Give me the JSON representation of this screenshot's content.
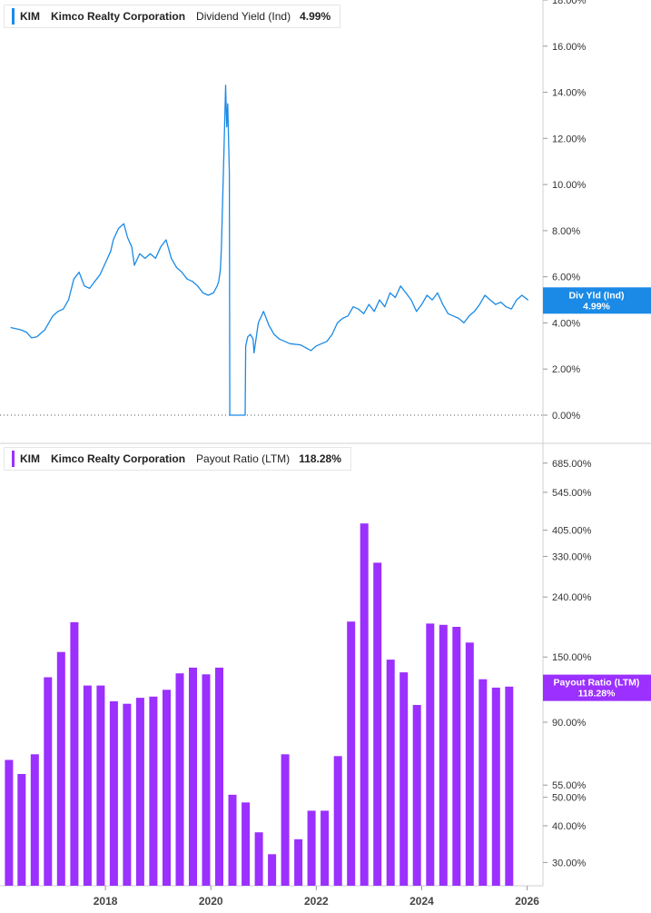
{
  "colors": {
    "yield": "#1a8ae6",
    "payout": "#9b30ff",
    "axis": "#d0d0d0"
  },
  "chart_data": [
    {
      "type": "line",
      "ticker": "KIM",
      "company": "Kimco Realty Corporation",
      "metric": "Dividend Yield (Ind)",
      "current_value": "4.99%",
      "badge_label": "Div Yld (Ind)",
      "badge_value": "4.99%",
      "y_scale": "linear",
      "ylim": [
        0,
        18
      ],
      "y_ticks": [
        0,
        2,
        4,
        6,
        8,
        10,
        12,
        14,
        16,
        18
      ],
      "y_tick_labels": [
        "0.00%",
        "2.00%",
        "4.00%",
        "6.00%",
        "8.00%",
        "10.00%",
        "12.00%",
        "14.00%",
        "16.00%",
        "18.00%"
      ],
      "baseline_dotted": 0,
      "x": [
        2016.2,
        2016.4,
        2016.5,
        2016.6,
        2016.7,
        2016.85,
        2017.0,
        2017.1,
        2017.2,
        2017.3,
        2017.4,
        2017.5,
        2017.6,
        2017.7,
        2017.8,
        2017.9,
        2018.0,
        2018.1,
        2018.15,
        2018.25,
        2018.35,
        2018.42,
        2018.5,
        2018.55,
        2018.65,
        2018.75,
        2018.85,
        2018.95,
        2019.05,
        2019.15,
        2019.25,
        2019.35,
        2019.45,
        2019.55,
        2019.65,
        2019.75,
        2019.85,
        2019.95,
        2020.05,
        2020.12,
        2020.15,
        2020.18,
        2020.2,
        2020.22,
        2020.25,
        2020.28,
        2020.3,
        2020.32,
        2020.35,
        2020.36,
        2020.4,
        2020.5,
        2020.6,
        2020.65,
        2020.66,
        2020.7,
        2020.75,
        2020.8,
        2020.82,
        2020.9,
        2021.0,
        2021.1,
        2021.2,
        2021.3,
        2021.5,
        2021.7,
        2021.9,
        2022.0,
        2022.2,
        2022.3,
        2022.4,
        2022.5,
        2022.6,
        2022.7,
        2022.8,
        2022.9,
        2023.0,
        2023.1,
        2023.2,
        2023.3,
        2023.4,
        2023.5,
        2023.6,
        2023.7,
        2023.8,
        2023.9,
        2024.0,
        2024.1,
        2024.2,
        2024.3,
        2024.4,
        2024.5,
        2024.6,
        2024.7,
        2024.8,
        2024.9,
        2025.0,
        2025.1,
        2025.2,
        2025.3,
        2025.4,
        2025.5,
        2025.6,
        2025.7,
        2025.8,
        2025.9,
        2026.02
      ],
      "values": [
        3.8,
        3.7,
        3.6,
        3.35,
        3.4,
        3.7,
        4.3,
        4.5,
        4.6,
        5.0,
        5.9,
        6.2,
        5.6,
        5.5,
        5.8,
        6.1,
        6.6,
        7.1,
        7.6,
        8.1,
        8.3,
        7.7,
        7.3,
        6.5,
        7.0,
        6.8,
        7.0,
        6.8,
        7.3,
        7.6,
        6.8,
        6.4,
        6.2,
        5.9,
        5.8,
        5.6,
        5.3,
        5.2,
        5.3,
        5.6,
        5.8,
        6.3,
        7.2,
        9.0,
        11.5,
        14.3,
        12.5,
        13.5,
        10.5,
        0.0,
        0.0,
        0.0,
        0.0,
        0.0,
        3.0,
        3.4,
        3.5,
        3.3,
        2.7,
        4.0,
        4.5,
        3.9,
        3.5,
        3.3,
        3.1,
        3.05,
        2.8,
        3.0,
        3.2,
        3.5,
        4.0,
        4.2,
        4.3,
        4.7,
        4.6,
        4.4,
        4.8,
        4.5,
        5.0,
        4.7,
        5.3,
        5.1,
        5.6,
        5.3,
        5.0,
        4.5,
        4.8,
        5.2,
        5.0,
        5.3,
        4.8,
        4.4,
        4.3,
        4.2,
        4.0,
        4.3,
        4.5,
        4.8,
        5.2,
        5.0,
        4.8,
        4.9,
        4.7,
        4.6,
        5.0,
        5.2,
        4.99
      ]
    },
    {
      "type": "bar",
      "ticker": "KIM",
      "company": "Kimco Realty Corporation",
      "metric": "Payout Ratio (LTM)",
      "current_value": "118.28%",
      "badge_label": "Payout Ratio (LTM)",
      "badge_value": "118.28%",
      "y_scale": "log",
      "ylim": [
        25,
        800
      ],
      "y_ticks": [
        30,
        40,
        50,
        55,
        90,
        150,
        240,
        330,
        405,
        545,
        685
      ],
      "y_tick_labels": [
        "30.00%",
        "40.00%",
        "50.00%",
        "55.00%",
        "90.00%",
        "150.00%",
        "240.00%",
        "330.00%",
        "405.00%",
        "545.00%",
        "685.00%"
      ],
      "x": [
        2016.17,
        2016.41,
        2016.66,
        2016.91,
        2017.16,
        2017.41,
        2017.66,
        2017.91,
        2018.16,
        2018.41,
        2018.66,
        2018.91,
        2019.16,
        2019.41,
        2019.66,
        2019.91,
        2020.16,
        2020.41,
        2020.66,
        2020.91,
        2021.16,
        2021.41,
        2021.66,
        2021.91,
        2022.16,
        2022.41,
        2022.66,
        2022.91,
        2023.16,
        2023.41,
        2023.66,
        2023.91,
        2024.16,
        2024.41,
        2024.66,
        2024.91,
        2025.16,
        2025.41,
        2025.66
      ],
      "values": [
        67,
        60,
        70,
        128,
        156,
        197,
        120,
        120,
        106,
        104,
        109,
        110,
        116,
        132,
        138,
        131,
        138,
        51,
        48,
        38,
        32,
        70,
        36,
        45,
        45,
        69,
        198,
        427,
        314,
        147,
        133,
        103,
        195,
        193,
        190,
        168,
        126,
        118,
        119
      ]
    }
  ],
  "x_axis": {
    "range": [
      2016.0,
      2026.3
    ],
    "ticks": [
      2018,
      2020,
      2022,
      2024,
      2026
    ],
    "tick_labels": [
      "2018",
      "2020",
      "2022",
      "2024",
      "2026"
    ]
  }
}
